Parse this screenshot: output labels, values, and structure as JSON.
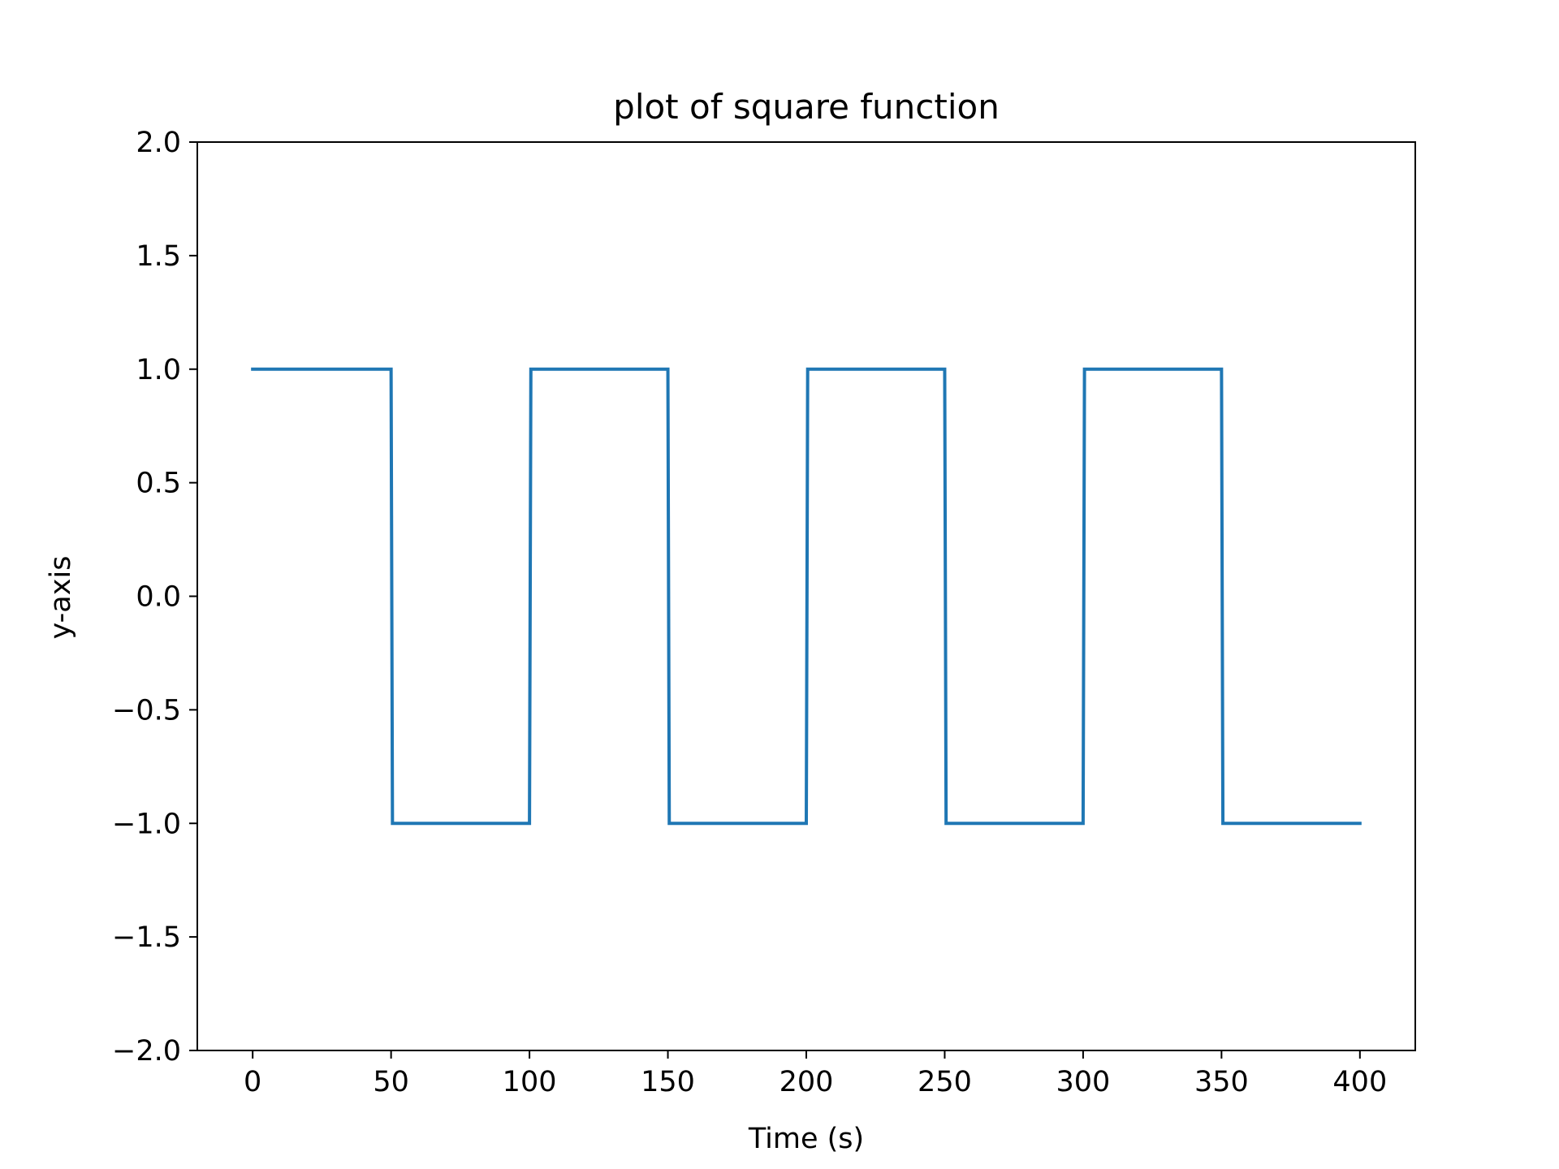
{
  "chart_data": {
    "type": "line",
    "title": "plot of square function",
    "xlabel": "Time (s)",
    "ylabel": "y-axis",
    "xlim": [
      -20,
      420
    ],
    "ylim": [
      -2.0,
      2.0
    ],
    "x_ticks": [
      0,
      50,
      100,
      150,
      200,
      250,
      300,
      350,
      400
    ],
    "x_tick_labels": [
      "0",
      "50",
      "100",
      "150",
      "200",
      "250",
      "300",
      "350",
      "400"
    ],
    "y_ticks": [
      -2.0,
      -1.5,
      -1.0,
      -0.5,
      0.0,
      0.5,
      1.0,
      1.5,
      2.0
    ],
    "y_tick_labels": [
      "−2.0",
      "−1.5",
      "−1.0",
      "−0.5",
      "0.0",
      "0.5",
      "1.0",
      "1.5",
      "2.0"
    ],
    "grid": false,
    "series": [
      {
        "color": "#1f77b4",
        "x": [
          0,
          50,
          50.5,
          100,
          100.5,
          150,
          150.5,
          200,
          200.5,
          250,
          250.5,
          300,
          300.5,
          350,
          350.5,
          400
        ],
        "y": [
          1,
          1,
          -1,
          -1,
          1,
          1,
          -1,
          -1,
          1,
          1,
          -1,
          -1,
          1,
          1,
          -1,
          -1
        ]
      }
    ]
  }
}
